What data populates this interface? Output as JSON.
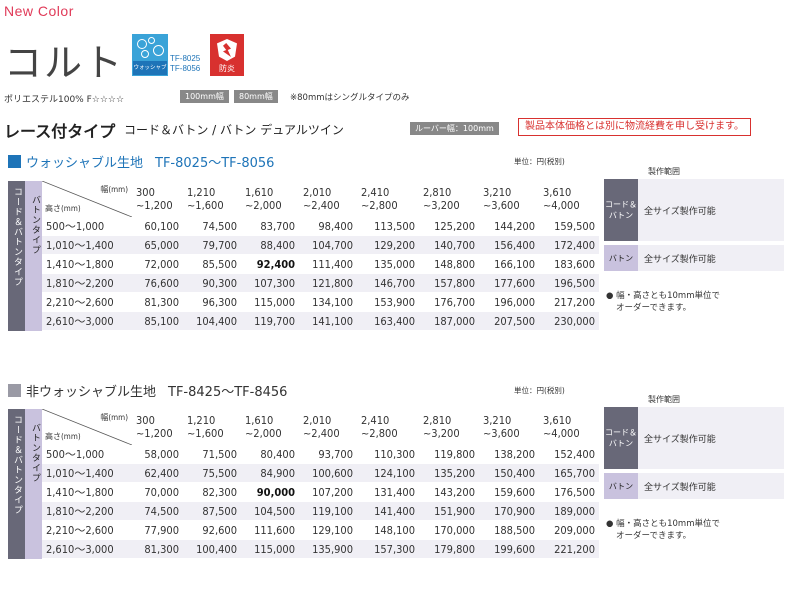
{
  "header": {
    "new_color": "New Color",
    "product_name": "コルト",
    "wash_badge_label": "ウォッシャブル",
    "wash_codes": [
      "TF-8025",
      "TF-8056"
    ],
    "fire_badge_label": "防炎",
    "material": "ポリエステル100%  F☆☆☆☆",
    "tags": [
      "100mm幅",
      "80mm幅"
    ],
    "note_80": "※80mmはシングルタイプのみ"
  },
  "type_row": {
    "title": "レース付タイプ",
    "subtitle": "コード＆バトン / バトン  デュアルツイン",
    "louver": "ルーバー幅：100mm",
    "notice": "製品本体価格とは別に物流経費を申し受けます。"
  },
  "colors": {
    "washable": "#1e74b8",
    "nonwashable": "#9a9aa5",
    "side_dark": "#686878",
    "side_light": "#c9c2de",
    "notice_red": "#d8312f",
    "new_color": "#e03a58"
  },
  "width_header": "幅(mm)",
  "height_header": "高さ(mm)",
  "unit_label": "単位：円(税別)",
  "side_label_1": "コード＆バトンタイプ",
  "side_label_2": "バトンタイプ",
  "widths": [
    [
      "300",
      "~1,200"
    ],
    [
      "1,210",
      "~1,600"
    ],
    [
      "1,610",
      "~2,000"
    ],
    [
      "2,010",
      "~2,400"
    ],
    [
      "2,410",
      "~2,800"
    ],
    [
      "2,810",
      "~3,200"
    ],
    [
      "3,210",
      "~3,600"
    ],
    [
      "3,610",
      "~4,000"
    ]
  ],
  "heights": [
    "500～1,000",
    "1,010～1,400",
    "1,410～1,800",
    "1,810～2,200",
    "2,210～2,600",
    "2,610～3,000"
  ],
  "sections": [
    {
      "title": "ウォッシャブル生地",
      "code": "TF-8025〜TF-8056",
      "rows": [
        [
          "60,100",
          "74,500",
          "83,700",
          "98,400",
          "113,500",
          "125,200",
          "144,200",
          "159,500"
        ],
        [
          "65,000",
          "79,700",
          "88,400",
          "104,700",
          "129,200",
          "140,700",
          "156,400",
          "172,400"
        ],
        [
          "72,000",
          "85,500",
          "92,400",
          "111,400",
          "135,000",
          "148,800",
          "166,100",
          "183,600"
        ],
        [
          "76,600",
          "90,300",
          "107,300",
          "121,800",
          "146,700",
          "157,800",
          "177,600",
          "196,500"
        ],
        [
          "81,300",
          "96,300",
          "115,000",
          "134,100",
          "153,900",
          "176,700",
          "196,000",
          "217,200"
        ],
        [
          "85,100",
          "104,400",
          "119,700",
          "141,100",
          "163,400",
          "187,000",
          "207,500",
          "230,000"
        ]
      ],
      "highlight": "92,400"
    },
    {
      "title": "非ウォッシャブル生地",
      "code": "TF-8425〜TF-8456",
      "rows": [
        [
          "58,000",
          "71,500",
          "80,400",
          "93,700",
          "110,300",
          "119,800",
          "138,200",
          "152,400"
        ],
        [
          "62,400",
          "75,500",
          "84,900",
          "100,600",
          "124,100",
          "135,200",
          "150,400",
          "165,700"
        ],
        [
          "70,000",
          "82,300",
          "90,000",
          "107,200",
          "131,400",
          "143,200",
          "159,600",
          "176,500"
        ],
        [
          "74,500",
          "87,500",
          "104,500",
          "119,100",
          "141,400",
          "151,900",
          "170,900",
          "189,000"
        ],
        [
          "77,900",
          "92,600",
          "111,600",
          "129,100",
          "148,100",
          "170,000",
          "188,500",
          "209,000"
        ],
        [
          "81,300",
          "100,400",
          "115,000",
          "135,900",
          "157,300",
          "179,800",
          "199,600",
          "221,200"
        ]
      ],
      "highlight": "90,000"
    }
  ],
  "range_box": {
    "title": "製作範囲",
    "rows": [
      {
        "label": "コード＆バトン",
        "value": "全サイズ製作可能"
      },
      {
        "label": "バトン",
        "value": "全サイズ製作可能"
      }
    ],
    "footnote_1": "● 幅・高さとも10mm単位で",
    "footnote_2": "オーダーできます。"
  }
}
